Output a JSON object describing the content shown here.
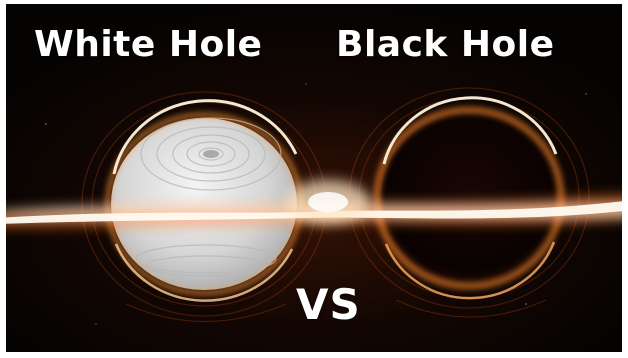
{
  "thumbnail": {
    "left_title": "White Hole",
    "right_title": "Black Hole",
    "versus_label": "VS"
  },
  "palette": {
    "space": "#050302",
    "disk_core": "#fffaf0",
    "disk_glow": "#ff8a2a",
    "disk_outer": "#c2410c",
    "white_hole_body": "#d9d9d9",
    "black_hole_body": "#0a0302",
    "title_text": "#ffffff"
  },
  "icons": {
    "left_object": "white-hole-illustration",
    "right_object": "black-hole-illustration"
  }
}
